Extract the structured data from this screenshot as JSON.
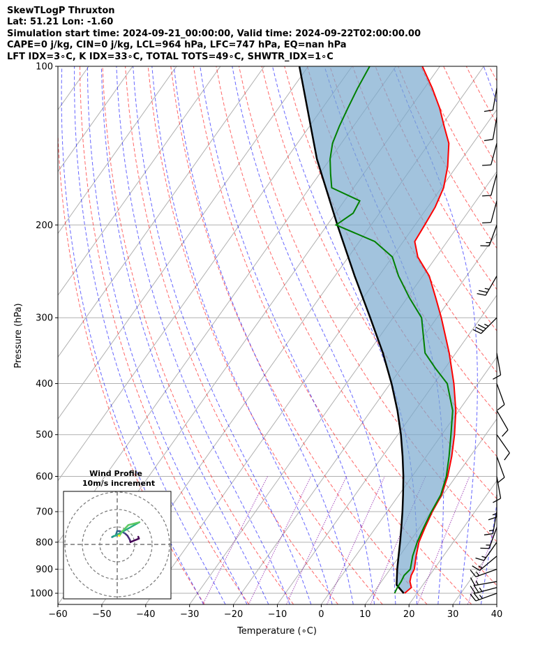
{
  "header": {
    "line1": "SkewTLogP Thruxton",
    "line2": "Lat: 51.21   Lon: -1.60",
    "line3": "Simulation start time: 2024-09-21_00:00:00, Valid time: 2024-09-22T02:00:00.00",
    "line4": "CAPE=0 j/kg, CIN=0 j/kg, LCL=964 hPa, LFC=747 hPa, EQ=nan hPa",
    "line5": "LFT IDX=3∘C, K IDX=33∘C, TOTAL TOTS=49∘C, SHWTR_IDX=1∘C"
  },
  "chart_data": {
    "type": "skew-t log-p",
    "xlabel": "Temperature (∘C)",
    "ylabel": "Pressure (hPa)",
    "x_ticks": [
      "−60",
      "−50",
      "−40",
      "−30",
      "−20",
      "−10",
      "0",
      "10",
      "20",
      "30",
      "40"
    ],
    "x_tick_values": [
      -60,
      -50,
      -40,
      -30,
      -20,
      -10,
      0,
      10,
      20,
      30,
      40
    ],
    "y_ticks": [
      "100",
      "200",
      "300",
      "400",
      "500",
      "600",
      "700",
      "800",
      "900",
      "1000"
    ],
    "y_tick_values": [
      100,
      200,
      300,
      400,
      500,
      600,
      700,
      800,
      900,
      1000
    ],
    "xlim": [
      -60,
      40
    ],
    "ylim": [
      1050,
      100
    ],
    "y_scale": "log",
    "grid": true,
    "temperature": {
      "color": "#ff0000",
      "p": [
        1000,
        975,
        950,
        925,
        900,
        850,
        800,
        750,
        700,
        650,
        600,
        550,
        500,
        450,
        400,
        350,
        300,
        275,
        250,
        230,
        215,
        200,
        185,
        170,
        155,
        140,
        130,
        120,
        110,
        100
      ],
      "t": [
        17.2,
        17.8,
        16.5,
        15.8,
        15.5,
        13.8,
        12.2,
        11.2,
        10.3,
        9.7,
        8.1,
        5.8,
        2.9,
        -0.7,
        -5.5,
        -11.5,
        -19.0,
        -23.5,
        -28.5,
        -34.2,
        -37.4,
        -37.8,
        -38.3,
        -39.5,
        -42.0,
        -45.5,
        -49.3,
        -53.3,
        -58.2,
        -64.0
      ]
    },
    "dewpoint": {
      "color": "#008000",
      "p": [
        1000,
        975,
        950,
        925,
        900,
        850,
        800,
        750,
        700,
        650,
        600,
        550,
        500,
        450,
        400,
        375,
        350,
        300,
        275,
        250,
        230,
        215,
        200,
        190,
        180,
        170,
        160,
        150,
        140,
        130,
        120,
        110,
        100
      ],
      "t": [
        14.9,
        14.6,
        14.5,
        14.2,
        14.6,
        13.0,
        11.8,
        10.9,
        10.1,
        9.5,
        7.8,
        5.2,
        2.1,
        -1.4,
        -7.0,
        -12.0,
        -17.0,
        -23.5,
        -29.5,
        -35.5,
        -40.0,
        -46.5,
        -58.0,
        -56.0,
        -56.5,
        -65.0,
        -67.5,
        -70.0,
        -72.0,
        -73.2,
        -74.2,
        -75.2,
        -76.0
      ]
    },
    "parcel": {
      "color": "#000000",
      "p": [
        1000,
        964,
        900,
        850,
        800,
        750,
        700,
        650,
        600,
        550,
        500,
        450,
        400,
        350,
        300,
        250,
        200,
        150,
        100
      ],
      "t": [
        17.0,
        14.0,
        11.6,
        9.8,
        7.9,
        5.8,
        3.5,
        0.9,
        -2.0,
        -5.4,
        -9.3,
        -14.0,
        -19.7,
        -26.6,
        -35.2,
        -45.5,
        -57.7,
        -73.0,
        -92.0
      ]
    },
    "hodograph": {
      "title": "Wind Profile",
      "subtitle": "10m/s increment",
      "ring_speeds": [
        10,
        20,
        30
      ]
    },
    "wind_barbs": [
      {
        "p": 1000,
        "speed_kt": 25,
        "dir_deg": 250
      },
      {
        "p": 975,
        "speed_kt": 25,
        "dir_deg": 255
      },
      {
        "p": 950,
        "speed_kt": 15,
        "dir_deg": 260
      },
      {
        "p": 900,
        "speed_kt": 15,
        "dir_deg": 250
      },
      {
        "p": 850,
        "speed_kt": 15,
        "dir_deg": 230
      },
      {
        "p": 800,
        "speed_kt": 15,
        "dir_deg": 215
      },
      {
        "p": 750,
        "speed_kt": 15,
        "dir_deg": 200
      },
      {
        "p": 700,
        "speed_kt": 15,
        "dir_deg": 190
      },
      {
        "p": 650,
        "speed_kt": 15,
        "dir_deg": 180
      },
      {
        "p": 600,
        "speed_kt": 10,
        "dir_deg": 170
      },
      {
        "p": 550,
        "speed_kt": 10,
        "dir_deg": 160
      },
      {
        "p": 500,
        "speed_kt": 10,
        "dir_deg": 145
      },
      {
        "p": 450,
        "speed_kt": 10,
        "dir_deg": 150
      },
      {
        "p": 400,
        "speed_kt": 10,
        "dir_deg": 160
      },
      {
        "p": 350,
        "speed_kt": 10,
        "dir_deg": 170
      },
      {
        "p": 300,
        "speed_kt": 35,
        "dir_deg": 225
      },
      {
        "p": 250,
        "speed_kt": 25,
        "dir_deg": 210
      },
      {
        "p": 200,
        "speed_kt": 15,
        "dir_deg": 200
      },
      {
        "p": 180,
        "speed_kt": 10,
        "dir_deg": 195
      },
      {
        "p": 160,
        "speed_kt": 10,
        "dir_deg": 195
      },
      {
        "p": 140,
        "speed_kt": 10,
        "dir_deg": 195
      },
      {
        "p": 125,
        "speed_kt": 10,
        "dir_deg": 190
      },
      {
        "p": 110,
        "speed_kt": 10,
        "dir_deg": 190
      }
    ]
  }
}
